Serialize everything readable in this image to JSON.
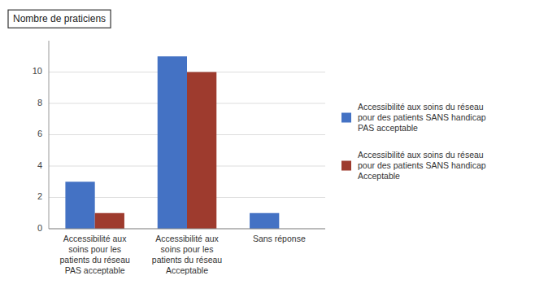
{
  "chart_data": {
    "type": "bar",
    "ylabel": "Nombre de praticiens",
    "categories": [
      "Accessibilité aux\nsoins pour les\npatients du réseau\nPAS acceptable",
      "Accessibilité aux\nsoins pour les\npatients du réseau\nAcceptable",
      "Sans réponse"
    ],
    "series": [
      {
        "name": "Accessibilité aux soins du réseau\npour des patients SANS handicap\nPAS acceptable",
        "color": "#4472C4",
        "values": [
          3,
          11,
          1
        ]
      },
      {
        "name": "Accessibilité aux soins du réseau\npour des patients SANS handicap\nAcceptable",
        "color": "#9E3B2E",
        "values": [
          1,
          10,
          0
        ]
      }
    ],
    "ylim": [
      0,
      12
    ],
    "yticks": [
      0,
      2,
      4,
      6,
      8,
      10
    ],
    "grid": true,
    "legend": "right"
  }
}
